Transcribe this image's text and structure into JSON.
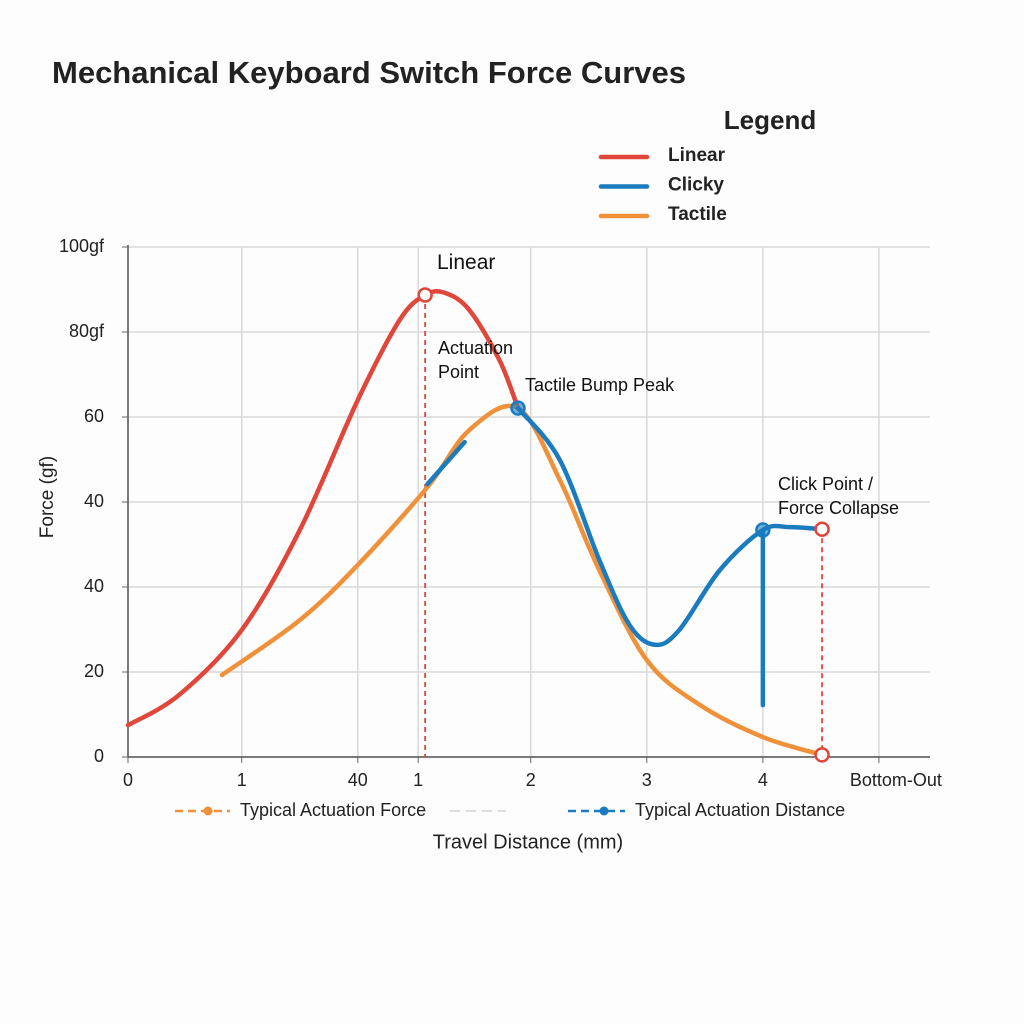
{
  "chart_data": {
    "type": "line",
    "title": "Mechanical Keyboard Switch Force Curves",
    "legend_title": "Legend",
    "x_label": "Travel Distance (mm)",
    "y_label": "Force (gf)",
    "xlim": [
      -1.47,
      5.44
    ],
    "ylim": [
      0,
      120
    ],
    "xticks": [
      {
        "value": -1.47,
        "label": "0"
      },
      {
        "value": -0.49,
        "label": "1"
      },
      {
        "value": 0.51,
        "label": "40"
      },
      {
        "value": 1.03,
        "label": "1"
      },
      2,
      3,
      4,
      {
        "value": 5,
        "label": "Bottom-Out"
      }
    ],
    "yticks": [
      0,
      20,
      40,
      {
        "value": 60,
        "label": "40"
      },
      {
        "value": 80,
        "label": "60"
      },
      {
        "value": 100,
        "label": "80gf"
      },
      {
        "value": 120,
        "label": "100gf"
      }
    ],
    "grid": true,
    "series": [
      {
        "name": "Linear",
        "color": "#e0463a",
        "x": [
          -1.47,
          -1.03,
          -0.49,
          0.01,
          0.51,
          0.87,
          1.09,
          1.26,
          1.47,
          1.73,
          1.89
        ],
        "values": [
          7.5,
          14.6,
          29.9,
          53.4,
          84.0,
          102.8,
          108.7,
          109.2,
          105.2,
          93.4,
          82.1
        ]
      },
      {
        "name": "Clicky",
        "color": "#1a7bbf",
        "x": [
          1.11,
          1.43,
          1.6,
          1.89,
          2.25,
          2.59,
          2.85,
          3.07,
          3.28,
          3.63,
          4.0,
          4.23,
          4.51,
          4.51,
          4.0,
          4.0
        ],
        "values": [
          64.2,
          74.1,
          null,
          82.1,
          69.9,
          46.4,
          31.1,
          26.4,
          29.9,
          44.0,
          53.4,
          54.1,
          53.6,
          null,
          53.4,
          12.2
        ]
      },
      {
        "name": "Tactile",
        "color": "#f0913a",
        "x": [
          -0.66,
          0.01,
          0.51,
          1.11,
          1.47,
          1.89,
          2.25,
          2.59,
          3.0,
          3.46,
          4.0,
          4.51
        ],
        "values": [
          19.3,
          32.2,
          45.2,
          63.5,
          76.9,
          82.1,
          65.2,
          44.0,
          22.8,
          12.2,
          4.7,
          0.5
        ]
      }
    ],
    "points": [
      {
        "x": 1.09,
        "y": 108.7,
        "color": "#e0463a"
      },
      {
        "x": 1.89,
        "y": 82.1,
        "color": "#1a7bbf"
      },
      {
        "x": 4.0,
        "y": 53.4,
        "color": "#1a7bbf"
      },
      {
        "x": 4.51,
        "y": 53.6,
        "color": "#e0463a"
      },
      {
        "x": 4.51,
        "y": 0.5,
        "color": "#e0463a"
      }
    ],
    "annotations": [
      "Linear",
      "Actuation Point",
      "Tactile Bump Peak",
      "Click Point / Force Collapse"
    ],
    "reference_legend": [
      {
        "label": "Typical Actuation Force",
        "color": "#f0913a"
      },
      {
        "label": "Typical Actuation Distance",
        "color": "#1a7bbf"
      }
    ]
  }
}
